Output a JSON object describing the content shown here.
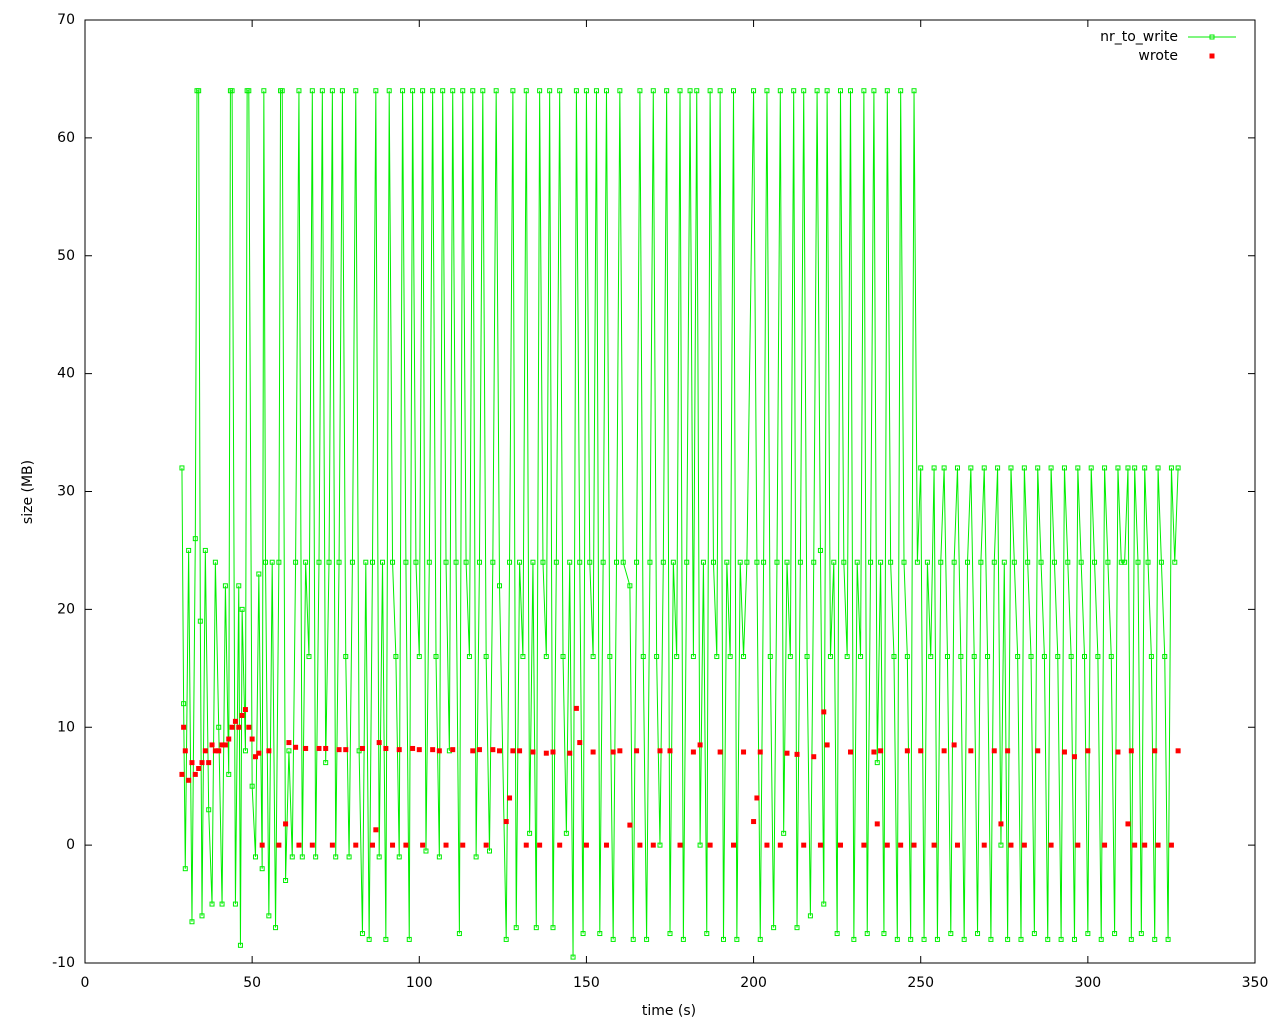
{
  "chart_data": {
    "type": "line",
    "xlabel": "time (s)",
    "ylabel": "size (MB)",
    "xlim": [
      0,
      350
    ],
    "xticks": [
      0,
      50,
      100,
      150,
      200,
      250,
      300,
      350
    ],
    "ylim": [
      -10,
      70
    ],
    "yticks": [
      -10,
      0,
      10,
      20,
      30,
      40,
      50,
      60,
      70
    ],
    "legend": "top-right",
    "series": [
      {
        "name": "nr_to_write",
        "color": "#00ee00",
        "style": "linespoints",
        "x": [
          29,
          29.5,
          30,
          31,
          32,
          33,
          33.5,
          34,
          34.5,
          35,
          36,
          37,
          38,
          39,
          40,
          41,
          42,
          43,
          43.5,
          44,
          45,
          46,
          46.5,
          47,
          48,
          48.5,
          49,
          50,
          51,
          52,
          53,
          53.5,
          54,
          55,
          56,
          57,
          58,
          58.5,
          59,
          60,
          61,
          62,
          63,
          64,
          65,
          66,
          67,
          68,
          69,
          70,
          71,
          72,
          73,
          74,
          75,
          76,
          77,
          78,
          79,
          80,
          81,
          82,
          83,
          84,
          85,
          86,
          87,
          88,
          89,
          90,
          91,
          92,
          93,
          94,
          95,
          96,
          97,
          98,
          99,
          100,
          101,
          102,
          103,
          104,
          105,
          106,
          107,
          108,
          109,
          110,
          111,
          112,
          113,
          114,
          115,
          116,
          117,
          118,
          119,
          120,
          121,
          122,
          123,
          124,
          126,
          127,
          128,
          129,
          130,
          131,
          132,
          133,
          134,
          135,
          136,
          137,
          138,
          139,
          140,
          141,
          142,
          143,
          144,
          145,
          146,
          147,
          148,
          149,
          150,
          151,
          152,
          153,
          154,
          155,
          156,
          157,
          158,
          159,
          160,
          161,
          163,
          164,
          165,
          166,
          167,
          168,
          169,
          170,
          171,
          172,
          173,
          174,
          175,
          176,
          177,
          178,
          179,
          180,
          181,
          182,
          183,
          184,
          185,
          186,
          187,
          188,
          189,
          190,
          191,
          192,
          193,
          194,
          195,
          196,
          197,
          198,
          200,
          201,
          202,
          203,
          204,
          205,
          206,
          207,
          208,
          209,
          210,
          211,
          212,
          213,
          214,
          215,
          216,
          217,
          218,
          219,
          220,
          221,
          222,
          223,
          224,
          225,
          226,
          227,
          228,
          229,
          230,
          231,
          232,
          233,
          234,
          235,
          236,
          237,
          238,
          239,
          240,
          241,
          242,
          243,
          244,
          245,
          246,
          247,
          248,
          249,
          250,
          251,
          252,
          253,
          254,
          255,
          256,
          257,
          258,
          259,
          260,
          261,
          262,
          263,
          264,
          265,
          266,
          267,
          268,
          269,
          270,
          271,
          272,
          273,
          274,
          275,
          276,
          277,
          278,
          279,
          280,
          281,
          282,
          283,
          284,
          285,
          286,
          287,
          288,
          289,
          290,
          291,
          292,
          293,
          294,
          295,
          296,
          297,
          298,
          299,
          300,
          301,
          302,
          303,
          304,
          305,
          306,
          307,
          308,
          309,
          310,
          311,
          312,
          313,
          314,
          315,
          316,
          317,
          318,
          319,
          320,
          321,
          322,
          323,
          324,
          325,
          326,
          327
        ],
        "values": [
          32,
          12,
          -2,
          25,
          -6.5,
          26,
          64,
          64,
          19,
          -6,
          25,
          3,
          -5,
          24,
          10,
          -5,
          22,
          6,
          64,
          64,
          -5,
          22,
          -8.5,
          20,
          8,
          64,
          64,
          5,
          -1,
          23,
          -2,
          64,
          24,
          -6,
          24,
          -7,
          24,
          64,
          64,
          -3,
          8,
          -1,
          24,
          64,
          -1,
          24,
          16,
          64,
          -1,
          24,
          64,
          7,
          24,
          64,
          -1,
          24,
          64,
          16,
          -1,
          24,
          64,
          8,
          -7.5,
          24,
          -8,
          24,
          64,
          -1,
          24,
          -8,
          64,
          24,
          16,
          -1,
          64,
          24,
          -8,
          64,
          24,
          16,
          64,
          -0.5,
          24,
          64,
          16,
          -1,
          64,
          24,
          8,
          64,
          24,
          -7.5,
          64,
          24,
          16,
          64,
          -1,
          24,
          64,
          16,
          -0.5,
          24,
          64,
          22,
          -8,
          24,
          64,
          -7,
          24,
          16,
          64,
          1,
          24,
          -7,
          64,
          24,
          16,
          64,
          -7,
          24,
          64,
          16,
          1,
          24,
          -9.5,
          64,
          24,
          -7.5,
          64,
          24,
          16,
          64,
          -7.5,
          24,
          64,
          16,
          -8,
          24,
          64,
          24,
          22,
          -8,
          24,
          64,
          16,
          -8,
          24,
          64,
          16,
          0,
          24,
          64,
          -7.5,
          24,
          16,
          64,
          -8,
          24,
          64,
          16,
          64,
          0,
          24,
          -7.5,
          64,
          24,
          16,
          64,
          -8,
          24,
          16,
          64,
          -8,
          24,
          16,
          24,
          64,
          24,
          -8,
          24,
          64,
          16,
          -7,
          24,
          64,
          1,
          24,
          16,
          64,
          -7,
          24,
          64,
          16,
          -6,
          24,
          64,
          25,
          -5,
          64,
          16,
          24,
          -7.5,
          64,
          24,
          16,
          64,
          -8,
          24,
          16,
          64,
          -7.5,
          24,
          64,
          7,
          24,
          -7.5,
          64,
          24,
          16,
          -8,
          64,
          24,
          16,
          -8,
          64,
          24,
          32,
          -8,
          24,
          16,
          32,
          -8,
          24,
          32,
          16,
          -7.5,
          24,
          32,
          16,
          -8,
          24,
          32,
          16,
          -7.5,
          24,
          32,
          16,
          -8,
          24,
          32,
          0,
          24,
          -8,
          32,
          24,
          16,
          -8,
          32,
          24,
          16,
          -7.5,
          32,
          24,
          16,
          -8,
          32,
          24,
          16,
          -8,
          32,
          24,
          16,
          -8,
          32,
          24,
          16,
          -7.5,
          32,
          24,
          16,
          -8,
          32,
          24,
          16,
          -7.5,
          32,
          24,
          24,
          32,
          -8,
          32,
          24,
          -7.5,
          32,
          24,
          16,
          -8,
          32,
          24,
          16,
          -8,
          32,
          24,
          32
        ]
      },
      {
        "name": "wrote",
        "color": "#ff0000",
        "style": "points",
        "x": [
          29,
          29.5,
          30,
          31,
          32,
          33,
          34,
          35,
          36,
          37,
          38,
          39,
          40,
          41,
          42,
          43,
          44,
          45,
          46,
          47,
          48,
          49,
          50,
          51,
          52,
          53,
          55,
          58,
          60,
          61,
          63,
          64,
          66,
          68,
          70,
          72,
          74,
          76,
          78,
          81,
          83,
          86,
          87,
          88,
          90,
          92,
          94,
          96,
          98,
          100,
          101,
          104,
          106,
          108,
          110,
          113,
          116,
          118,
          120,
          122,
          124,
          126,
          127,
          128,
          130,
          132,
          134,
          136,
          138,
          140,
          142,
          145,
          147,
          148,
          150,
          152,
          156,
          158,
          160,
          163,
          165,
          166,
          170,
          172,
          175,
          178,
          182,
          184,
          187,
          190,
          194,
          197,
          200,
          201,
          202,
          204,
          208,
          210,
          213,
          215,
          218,
          220,
          221,
          222,
          226,
          229,
          233,
          236,
          237,
          238,
          240,
          244,
          246,
          248,
          250,
          254,
          257,
          260,
          261,
          265,
          269,
          272,
          274,
          276,
          277,
          281,
          285,
          289,
          293,
          296,
          297,
          300,
          305,
          309,
          312,
          313,
          314,
          317,
          320,
          321,
          325,
          327
        ],
        "values": [
          6,
          10,
          8,
          5.5,
          7,
          6,
          6.5,
          7,
          8,
          7,
          8.5,
          8,
          8,
          8.5,
          8.5,
          9,
          10,
          10.5,
          10,
          11,
          11.5,
          10,
          9,
          7.5,
          7.8,
          0,
          8,
          0,
          1.8,
          8.7,
          8.3,
          0,
          8.2,
          0,
          8.2,
          8.2,
          0,
          8.1,
          8.1,
          0,
          8.2,
          0,
          1.3,
          8.7,
          8.2,
          0,
          8.1,
          0,
          8.2,
          8.1,
          0,
          8.1,
          8,
          0,
          8.1,
          0,
          8,
          8.1,
          0,
          8.1,
          8,
          2,
          4,
          8,
          8,
          0,
          7.9,
          0,
          7.8,
          7.9,
          0,
          7.8,
          11.6,
          8.7,
          0,
          7.9,
          0,
          7.9,
          8,
          1.7,
          8,
          0,
          0,
          8,
          8,
          0,
          7.9,
          8.5,
          0,
          7.9,
          0,
          7.9,
          2,
          4,
          7.9,
          0,
          0,
          7.8,
          7.7,
          0,
          7.5,
          0,
          11.3,
          8.5,
          0,
          7.9,
          0,
          7.9,
          1.8,
          8,
          0,
          0,
          8,
          0,
          8,
          0,
          8,
          8.5,
          0,
          8,
          0,
          8,
          1.8,
          8,
          0,
          0,
          8,
          0,
          7.9,
          7.5,
          0,
          8,
          0,
          7.9,
          1.8,
          8,
          0,
          0,
          8,
          0,
          0,
          8
        ]
      }
    ]
  }
}
